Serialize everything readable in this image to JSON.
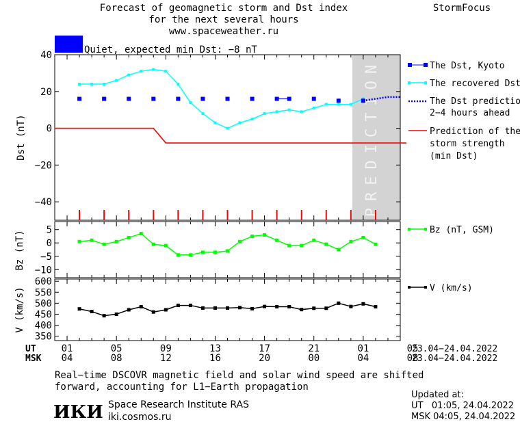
{
  "header": {
    "title_line1": "Forecast of geomagnetic storm and Dst index",
    "title_line2": "for the next several hours",
    "url": "www.spaceweather.ru",
    "brand": "StormFocus",
    "status_text": "Quiet, expected min Dst: −8 nT",
    "status_color": "#0000ff"
  },
  "prediction_label": "PREDICTION",
  "time_axis": {
    "ut_label": "UT",
    "msk_label": "MSK",
    "ut_ticks": [
      "01",
      "05",
      "09",
      "13",
      "17",
      "21",
      "01",
      "05"
    ],
    "msk_ticks": [
      "04",
      "08",
      "12",
      "16",
      "20",
      "00",
      "04",
      "08"
    ],
    "ut_range": "23.04−24.04.2022",
    "msk_range": "23.04−24.04.2022"
  },
  "footer": {
    "note_line1": "Real−time DSCOVR magnetic field and solar wind speed are shifted",
    "note_line2": "forward, accounting for L1−Earth propagation",
    "logo_text": "ИКИ",
    "institute": "Space Research Institute RAS",
    "site": "iki.cosmos.ru",
    "updated_label": "Updated at:",
    "updated_ut": "UT   01:05, 24.04.2022",
    "updated_msk": "MSK 04:05, 24.04.2022"
  },
  "colors": {
    "dst_kyoto": "#0000ff",
    "recovered": "#00ffff",
    "prediction": "#0000ff",
    "storm": "#ff0000",
    "bz": "#00ff00",
    "v": "#000000",
    "prediction_bg": "#d3d3d3"
  },
  "chart_data": [
    {
      "type": "line",
      "panel": "dst",
      "ylabel": "Dst (nT)",
      "ylim": [
        -50,
        40
      ],
      "yticks": [
        "40",
        "20",
        "0",
        "−20",
        "−40"
      ],
      "x_hours_ut": "hours since 23.04 00:00 UT",
      "series": [
        {
          "name": "The Dst, Kyoto",
          "style": "square-markers",
          "x": [
            2,
            4,
            6,
            8,
            10,
            12,
            14,
            16,
            18,
            19,
            21,
            23,
            25
          ],
          "y": [
            16,
            16,
            16,
            16,
            16,
            16,
            16,
            16,
            16,
            16,
            16,
            15,
            15
          ]
        },
        {
          "name": "The recovered Dst",
          "style": "line-markers",
          "x": [
            2,
            3,
            4,
            5,
            6,
            7,
            8,
            9,
            10,
            11,
            12,
            13,
            14,
            15,
            16,
            17,
            18,
            19,
            20,
            21,
            22,
            23,
            24,
            25
          ],
          "y": [
            24,
            24,
            24,
            26,
            29,
            31,
            32,
            31,
            24,
            14,
            8,
            3,
            0,
            3,
            5,
            8,
            9,
            10,
            9,
            11,
            13,
            13,
            13,
            16
          ]
        },
        {
          "name": "The Dst prediction\n2−4 hours ahead",
          "style": "dotted",
          "x": [
            25,
            26,
            27,
            28
          ],
          "y": [
            15,
            16,
            17,
            17
          ]
        },
        {
          "name": "Prediction of the\nstorm strength\n(min Dst)",
          "style": "step",
          "x": [
            0,
            8,
            9,
            28.5
          ],
          "y": [
            0,
            0,
            -8,
            -8
          ]
        }
      ],
      "storm_ticks_x": [
        2,
        4,
        6,
        8,
        10,
        12,
        14,
        16,
        18,
        20,
        22,
        24,
        26
      ]
    },
    {
      "type": "line",
      "panel": "bz",
      "ylabel": "Bz (nT)",
      "ylim": [
        -13,
        8
      ],
      "yticks": [
        "5",
        "0",
        "−5",
        "−10"
      ],
      "series": [
        {
          "name": "Bz (nT, GSM)",
          "x": [
            2,
            3,
            4,
            5,
            6,
            7,
            8,
            9,
            10,
            11,
            12,
            13,
            14,
            15,
            16,
            17,
            18,
            19,
            20,
            21,
            22,
            23,
            24,
            25,
            26
          ],
          "y": [
            0.5,
            1,
            -0.5,
            0.5,
            2,
            3.5,
            -0.5,
            -1,
            -4.5,
            -4.5,
            -3.5,
            -3.5,
            -3,
            0.5,
            2.5,
            3,
            1,
            -1,
            -1,
            1,
            -0.5,
            -2.5,
            0.5,
            2,
            -0.5
          ]
        }
      ]
    },
    {
      "type": "line",
      "panel": "v",
      "ylabel": "V (km/s)",
      "ylim": [
        330,
        610
      ],
      "yticks": [
        "600",
        "550",
        "500",
        "450",
        "400",
        "350"
      ],
      "series": [
        {
          "name": "V (km/s)",
          "x": [
            2,
            3,
            4,
            5,
            6,
            7,
            8,
            9,
            10,
            11,
            12,
            13,
            14,
            15,
            16,
            17,
            18,
            19,
            20,
            21,
            22,
            23,
            24,
            25,
            26
          ],
          "y": [
            474,
            462,
            443,
            450,
            470,
            484,
            460,
            470,
            490,
            490,
            478,
            478,
            478,
            480,
            475,
            485,
            484,
            484,
            471,
            477,
            477,
            500,
            485,
            497,
            484
          ]
        }
      ]
    }
  ]
}
